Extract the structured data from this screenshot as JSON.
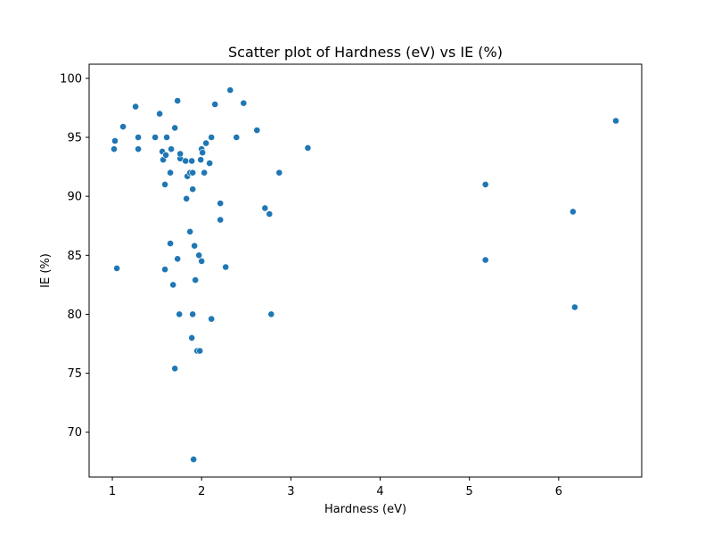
{
  "chart_data": {
    "type": "scatter",
    "title": "Scatter plot of Hardness  (eV) vs IE (%)",
    "xlabel": "Hardness  (eV)",
    "ylabel": "IE (%)",
    "xlim": [
      0.74,
      6.93
    ],
    "ylim": [
      66.2,
      101.2
    ],
    "xticks": [
      1,
      2,
      3,
      4,
      5,
      6
    ],
    "yticks": [
      70,
      75,
      80,
      85,
      90,
      95,
      100
    ],
    "grid": false,
    "legend": "none",
    "marker_color": "#1f77b4",
    "points": [
      {
        "x": 1.02,
        "y": 94.0
      },
      {
        "x": 1.03,
        "y": 94.7
      },
      {
        "x": 1.05,
        "y": 83.9
      },
      {
        "x": 1.12,
        "y": 95.9
      },
      {
        "x": 1.26,
        "y": 97.6
      },
      {
        "x": 1.29,
        "y": 95.0
      },
      {
        "x": 1.29,
        "y": 94.0
      },
      {
        "x": 1.48,
        "y": 95.0
      },
      {
        "x": 1.53,
        "y": 97.0
      },
      {
        "x": 1.56,
        "y": 93.8
      },
      {
        "x": 1.57,
        "y": 93.1
      },
      {
        "x": 1.59,
        "y": 83.8
      },
      {
        "x": 1.59,
        "y": 91.0
      },
      {
        "x": 1.6,
        "y": 93.5
      },
      {
        "x": 1.61,
        "y": 95.0
      },
      {
        "x": 1.65,
        "y": 92.0
      },
      {
        "x": 1.65,
        "y": 86.0
      },
      {
        "x": 1.66,
        "y": 94.0
      },
      {
        "x": 1.68,
        "y": 82.5
      },
      {
        "x": 1.7,
        "y": 95.8
      },
      {
        "x": 1.7,
        "y": 75.4
      },
      {
        "x": 1.73,
        "y": 98.1
      },
      {
        "x": 1.73,
        "y": 84.7
      },
      {
        "x": 1.75,
        "y": 80.0
      },
      {
        "x": 1.76,
        "y": 93.2
      },
      {
        "x": 1.76,
        "y": 93.6
      },
      {
        "x": 1.82,
        "y": 93.0
      },
      {
        "x": 1.83,
        "y": 89.8
      },
      {
        "x": 1.84,
        "y": 91.7
      },
      {
        "x": 1.87,
        "y": 87.0
      },
      {
        "x": 1.87,
        "y": 92.0
      },
      {
        "x": 1.89,
        "y": 93.0
      },
      {
        "x": 1.89,
        "y": 78.0
      },
      {
        "x": 1.9,
        "y": 90.6
      },
      {
        "x": 1.9,
        "y": 92.0
      },
      {
        "x": 1.9,
        "y": 80.0
      },
      {
        "x": 1.91,
        "y": 67.7
      },
      {
        "x": 1.92,
        "y": 85.8
      },
      {
        "x": 1.93,
        "y": 82.9
      },
      {
        "x": 1.95,
        "y": 76.9
      },
      {
        "x": 1.97,
        "y": 85.0
      },
      {
        "x": 1.98,
        "y": 76.9
      },
      {
        "x": 1.99,
        "y": 93.1
      },
      {
        "x": 2.0,
        "y": 94.0
      },
      {
        "x": 2.0,
        "y": 84.5
      },
      {
        "x": 2.01,
        "y": 93.7
      },
      {
        "x": 2.03,
        "y": 92.0
      },
      {
        "x": 2.05,
        "y": 94.5
      },
      {
        "x": 2.09,
        "y": 92.8
      },
      {
        "x": 2.11,
        "y": 95.0
      },
      {
        "x": 2.11,
        "y": 79.6
      },
      {
        "x": 2.15,
        "y": 97.8
      },
      {
        "x": 2.21,
        "y": 89.4
      },
      {
        "x": 2.21,
        "y": 88.0
      },
      {
        "x": 2.27,
        "y": 84.0
      },
      {
        "x": 2.32,
        "y": 99.0
      },
      {
        "x": 2.39,
        "y": 95.0
      },
      {
        "x": 2.47,
        "y": 97.9
      },
      {
        "x": 2.62,
        "y": 95.6
      },
      {
        "x": 2.71,
        "y": 89.0
      },
      {
        "x": 2.76,
        "y": 88.5
      },
      {
        "x": 2.78,
        "y": 80.0
      },
      {
        "x": 2.87,
        "y": 92.0
      },
      {
        "x": 3.19,
        "y": 94.1
      },
      {
        "x": 5.18,
        "y": 91.0
      },
      {
        "x": 5.18,
        "y": 84.6
      },
      {
        "x": 6.16,
        "y": 88.7
      },
      {
        "x": 6.18,
        "y": 80.6
      },
      {
        "x": 6.64,
        "y": 96.4
      }
    ]
  }
}
